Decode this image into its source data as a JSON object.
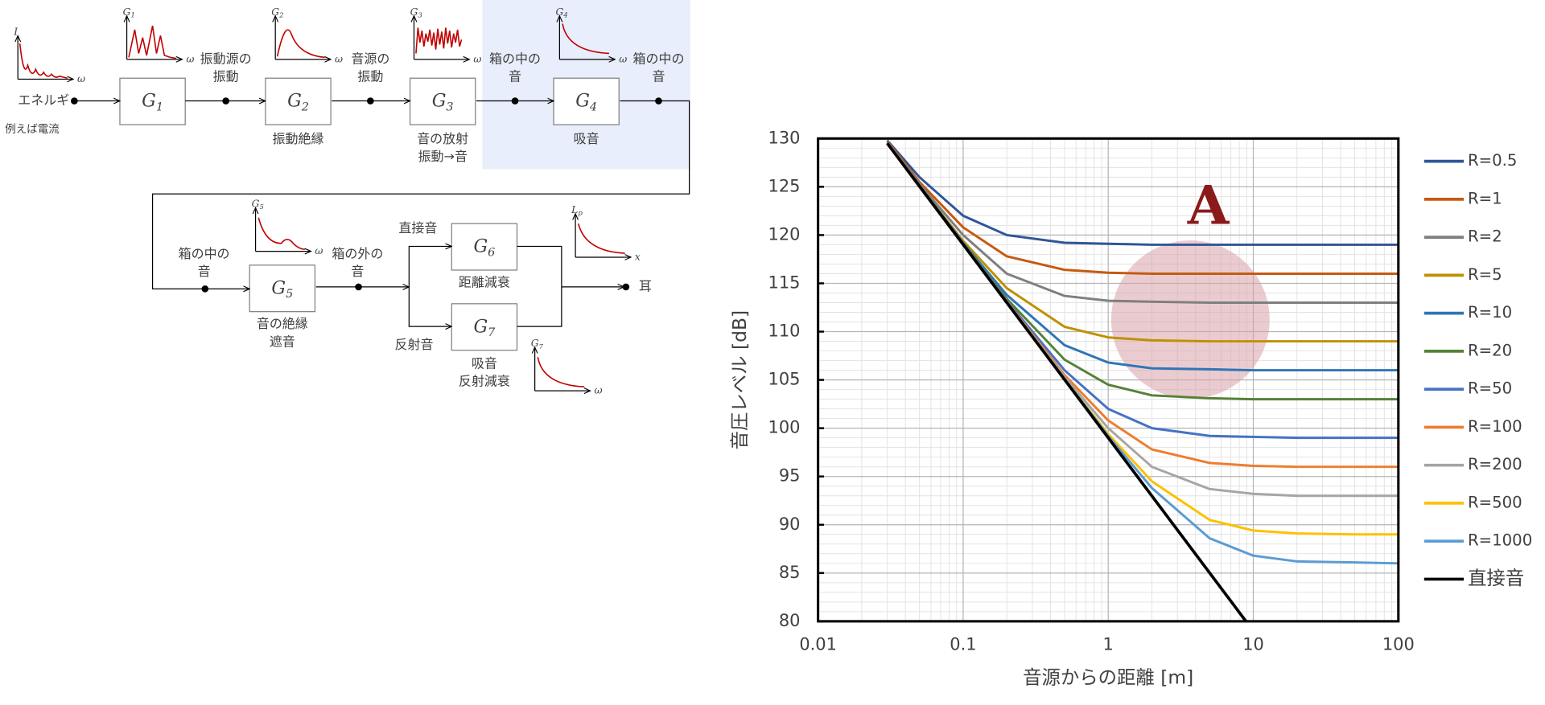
{
  "chart_data": {
    "type": "line",
    "xscale": "log",
    "grid": true,
    "legend": "right",
    "annotation": "A",
    "xlabel": "音源からの距離 [m]",
    "ylabel": "音圧レベル [dB]",
    "xlim": [
      0.01,
      100
    ],
    "xticks": [
      0.01,
      0.1,
      1,
      10,
      100
    ],
    "ylim": [
      80,
      130
    ],
    "yticks": [
      80,
      85,
      90,
      95,
      100,
      105,
      110,
      115,
      120,
      125,
      130
    ],
    "x": [
      0.03,
      0.05,
      0.1,
      0.2,
      0.5,
      1,
      2,
      5,
      10,
      20,
      50,
      100
    ],
    "series": [
      {
        "name": "R=0.5",
        "color": "#2f5597",
        "values": [
          129.8,
          126.0,
          122.0,
          120.0,
          119.2,
          119.1,
          119.0,
          119.0,
          119.0,
          119.0,
          119.0,
          119.0
        ]
      },
      {
        "name": "R=1",
        "color": "#c55a11",
        "values": [
          129.7,
          125.5,
          120.8,
          117.8,
          116.4,
          116.1,
          116.0,
          116.0,
          116.0,
          116.0,
          116.0,
          116.0
        ]
      },
      {
        "name": "R=2",
        "color": "#7f7f7f",
        "values": [
          129.6,
          125.3,
          120.0,
          116.0,
          113.7,
          113.2,
          113.1,
          113.0,
          113.0,
          113.0,
          113.0,
          113.0
        ]
      },
      {
        "name": "R=5",
        "color": "#bf9000",
        "values": [
          129.5,
          125.1,
          119.4,
          114.5,
          110.5,
          109.4,
          109.1,
          109.0,
          109.0,
          109.0,
          109.0,
          109.0
        ]
      },
      {
        "name": "R=10",
        "color": "#2e75b6",
        "values": [
          129.5,
          125.1,
          119.2,
          113.8,
          108.6,
          106.8,
          106.2,
          106.1,
          106.0,
          106.0,
          106.0,
          106.0
        ]
      },
      {
        "name": "R=20",
        "color": "#548235",
        "values": [
          129.5,
          125.1,
          119.1,
          113.4,
          107.1,
          104.5,
          103.4,
          103.1,
          103.0,
          103.0,
          103.0,
          103.0
        ]
      },
      {
        "name": "R=50",
        "color": "#4472c4",
        "values": [
          129.5,
          125.0,
          119.1,
          113.2,
          106.0,
          102.0,
          100.0,
          99.2,
          99.1,
          99.0,
          99.0,
          99.0
        ]
      },
      {
        "name": "R=100",
        "color": "#ed7d31",
        "values": [
          129.5,
          125.0,
          119.0,
          113.1,
          105.5,
          100.8,
          97.8,
          96.4,
          96.1,
          96.0,
          96.0,
          96.0
        ]
      },
      {
        "name": "R=200",
        "color": "#a5a5a5",
        "values": [
          129.5,
          125.0,
          119.0,
          113.0,
          105.3,
          100.0,
          96.0,
          93.7,
          93.2,
          93.0,
          93.0,
          93.0
        ]
      },
      {
        "name": "R=500",
        "color": "#ffc000",
        "values": [
          129.5,
          125.0,
          119.0,
          113.0,
          105.1,
          99.4,
          94.5,
          90.5,
          89.4,
          89.1,
          89.0,
          89.0
        ]
      },
      {
        "name": "R=1000",
        "color": "#5b9bd5",
        "values": [
          129.5,
          125.0,
          119.0,
          113.0,
          105.1,
          99.2,
          93.8,
          88.6,
          86.8,
          86.2,
          86.1,
          86.0
        ]
      },
      {
        "name": "直接音",
        "color": "#000000",
        "x": [
          0.03,
          8.9
        ],
        "values": [
          129.5,
          80
        ]
      }
    ]
  },
  "diagram": {
    "input": {
      "label": "エネルギ",
      "note": "例えば電流"
    },
    "blocks": [
      {
        "symbol": "G",
        "sub": "1",
        "caption": []
      },
      {
        "symbol": "G",
        "sub": "2",
        "caption": [
          "振動絶縁"
        ]
      },
      {
        "symbol": "G",
        "sub": "3",
        "caption": [
          "音の放射",
          "振動→音"
        ]
      },
      {
        "symbol": "G",
        "sub": "4",
        "caption": [
          "吸音"
        ]
      },
      {
        "symbol": "G",
        "sub": "5",
        "caption": [
          "音の絶縁",
          "遮音"
        ]
      },
      {
        "symbol": "G",
        "sub": "6",
        "caption": [
          "距離減衰"
        ]
      },
      {
        "symbol": "G",
        "sub": "7",
        "caption": [
          "吸音",
          "反射減衰"
        ]
      }
    ],
    "signals": [
      [
        "振動源の",
        "振動"
      ],
      [
        "音源の",
        "振動"
      ],
      [
        "箱の中の",
        "音"
      ],
      [
        "箱の中の",
        "音"
      ],
      [
        "箱の中の",
        "音"
      ],
      [
        "箱の外の",
        "音"
      ]
    ],
    "paths": [
      "直接音",
      "反射音"
    ],
    "output": "耳",
    "mini_plots": [
      {
        "y": "I",
        "x": "ω"
      },
      {
        "y": "G",
        "y_sub": "1",
        "x": "ω"
      },
      {
        "y": "G",
        "y_sub": "2",
        "x": "ω"
      },
      {
        "y": "G",
        "y_sub": "3",
        "x": "ω"
      },
      {
        "y": "G",
        "y_sub": "4",
        "x": "ω"
      },
      {
        "y": "G",
        "y_sub": "5",
        "x": "ω"
      },
      {
        "y": "L",
        "y_sub": "p",
        "x": "x"
      },
      {
        "y": "G",
        "y_sub": "7",
        "x": "ω"
      }
    ]
  }
}
